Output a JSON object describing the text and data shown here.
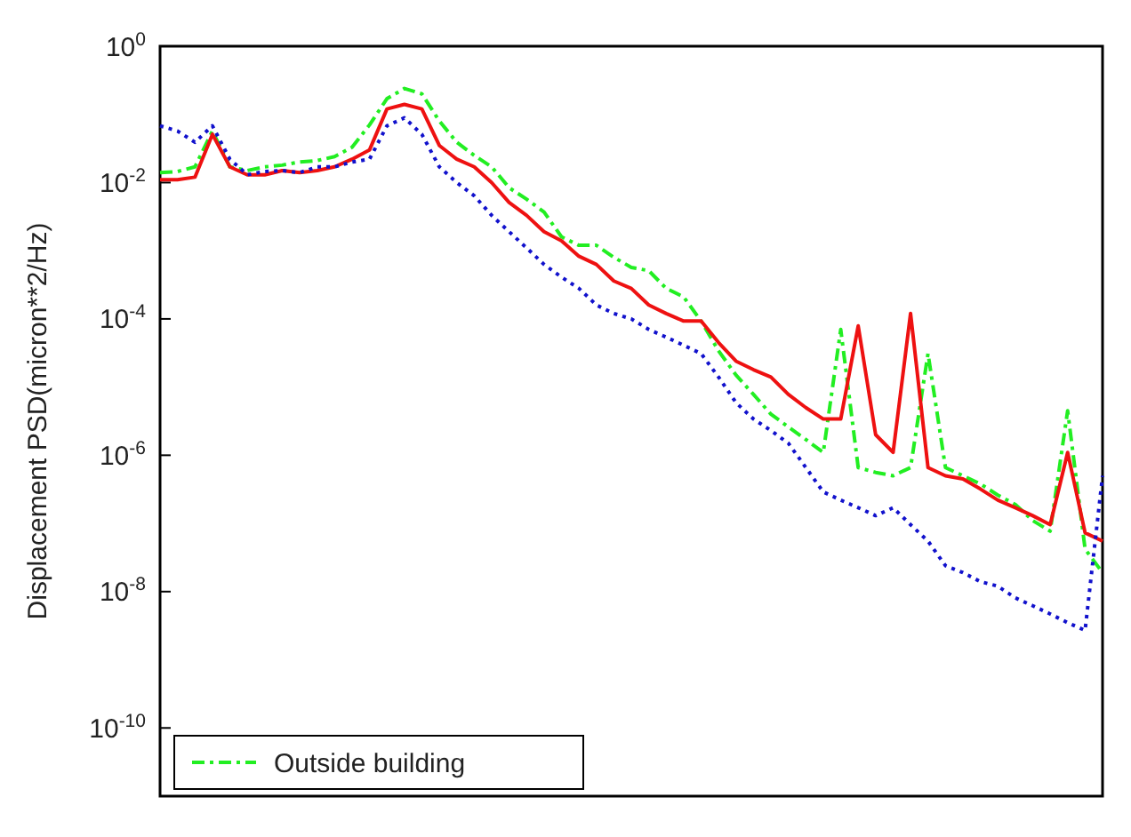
{
  "chart_data": {
    "type": "line",
    "ylabel": "Displacement PSD(micron**2/Hz)",
    "log": "y",
    "ylim": [
      1e-11,
      1
    ],
    "yticks": [
      {
        "value": 1,
        "label": "10$^{0}$"
      },
      {
        "value": 0.01,
        "label": "10$^{-2}$"
      },
      {
        "value": 0.0001,
        "label": "10$^{-4}$"
      },
      {
        "value": 1e-06,
        "label": "10$^{-6}$"
      },
      {
        "value": 1e-08,
        "label": "10$^{-8}$"
      },
      {
        "value": 1e-10,
        "label": "10$^{-10}$"
      }
    ],
    "tick_labels": "y",
    "grid": false,
    "legend": "bottom left",
    "marker": "none",
    "categories": [
      null,
      null,
      null,
      null,
      null,
      null,
      null,
      null,
      null,
      null,
      null,
      null,
      null,
      null,
      null,
      null,
      null,
      null,
      null,
      null,
      null,
      null,
      null,
      null,
      null,
      null,
      null,
      null,
      null,
      null,
      null,
      null,
      null,
      null,
      null,
      null,
      null,
      null,
      null,
      null,
      null,
      null,
      null,
      null,
      null,
      null,
      null,
      null,
      null,
      null,
      null,
      null,
      null,
      null,
      null
    ],
    "series": [
      {
        "name": "Outside building",
        "color": "#22ee22",
        "line_style": "dashed",
        "values": [
          0.014,
          0.0145,
          0.017,
          0.057,
          0.017,
          0.015,
          0.017,
          0.018,
          0.02,
          0.021,
          0.024,
          0.033,
          0.07,
          0.17,
          0.24,
          0.2,
          0.08,
          0.039,
          0.025,
          0.017,
          0.0084,
          0.0057,
          0.0037,
          0.0016,
          0.0012,
          0.0012,
          0.0008,
          0.00057,
          0.00051,
          0.00028,
          0.00021,
          9.3e-05,
          3.4e-05,
          1.5e-05,
          7.8e-06,
          4e-06,
          2.6e-06,
          1.7e-06,
          1.1e-06,
          7e-05,
          6.6e-07,
          5.6e-07,
          5e-07,
          6.6e-07,
          3.1e-05,
          6.6e-07,
          5e-07,
          3.8e-07,
          2.6e-07,
          1.9e-07,
          1.1e-07,
          7.7e-08,
          4.5e-06,
          4.2e-08,
          1.9e-08
        ]
      },
      {
        "color": "#ee1111",
        "line_style": "solid",
        "values": [
          0.011,
          0.011,
          0.012,
          0.051,
          0.017,
          0.013,
          0.013,
          0.015,
          0.014,
          0.015,
          0.017,
          0.022,
          0.03,
          0.12,
          0.14,
          0.12,
          0.035,
          0.022,
          0.017,
          0.01,
          0.0051,
          0.0033,
          0.0019,
          0.0014,
          0.00083,
          0.00063,
          0.00036,
          0.00028,
          0.00016,
          0.00012,
          9.3e-05,
          9.3e-05,
          4.5e-05,
          2.4e-05,
          1.8e-05,
          1.4e-05,
          7.8e-06,
          5e-06,
          3.4e-06,
          3.4e-06,
          7.9e-05,
          2e-06,
          1.1e-06,
          0.00012,
          6.6e-07,
          5e-07,
          4.5e-07,
          3.2e-07,
          2.2e-07,
          1.7e-07,
          1.3e-07,
          9.6e-08,
          1.1e-06,
          7.3e-08,
          5.5e-08
        ]
      },
      {
        "color": "#1111cc",
        "line_style": "dotted",
        "values": [
          0.068,
          0.057,
          0.039,
          0.068,
          0.022,
          0.013,
          0.0145,
          0.015,
          0.014,
          0.017,
          0.017,
          0.02,
          0.022,
          0.068,
          0.089,
          0.051,
          0.017,
          0.01,
          0.0064,
          0.0033,
          0.0019,
          0.0011,
          0.00063,
          0.00041,
          0.00028,
          0.00016,
          0.00012,
          0.0001,
          7e-05,
          5.4e-05,
          4.1e-05,
          3.1e-05,
          1.4e-05,
          5.9e-06,
          3.4e-06,
          2.3e-06,
          1.5e-06,
          6.6e-07,
          2.9e-07,
          2.2e-07,
          1.7e-07,
          1.3e-07,
          1.7e-07,
          9.6e-08,
          5.5e-08,
          2.4e-08,
          1.9e-08,
          1.4e-08,
          1.2e-08,
          8.1e-09,
          6.2e-09,
          4.7e-09,
          3.5e-09,
          2.7e-09,
          5e-07
        ]
      }
    ]
  }
}
